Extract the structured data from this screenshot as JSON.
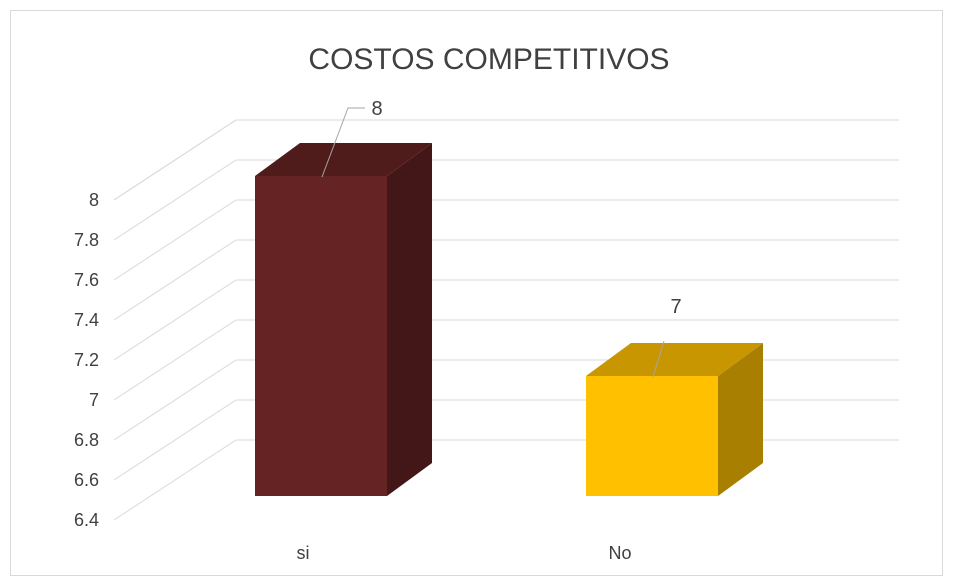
{
  "chart_data": {
    "type": "bar",
    "title": "COSTOS COMPETITIVOS",
    "categories": [
      "si",
      "No"
    ],
    "values": [
      8,
      7
    ],
    "data_labels": [
      "8",
      "7"
    ],
    "colors": [
      "#652323",
      "#FFC000"
    ],
    "ylim": [
      6.4,
      8
    ],
    "y_ticks": [
      "6.4",
      "6.6",
      "6.8",
      "7",
      "7.2",
      "7.4",
      "7.6",
      "7.8",
      "8"
    ],
    "grid": true,
    "legend": "none",
    "style": "3d-column"
  }
}
